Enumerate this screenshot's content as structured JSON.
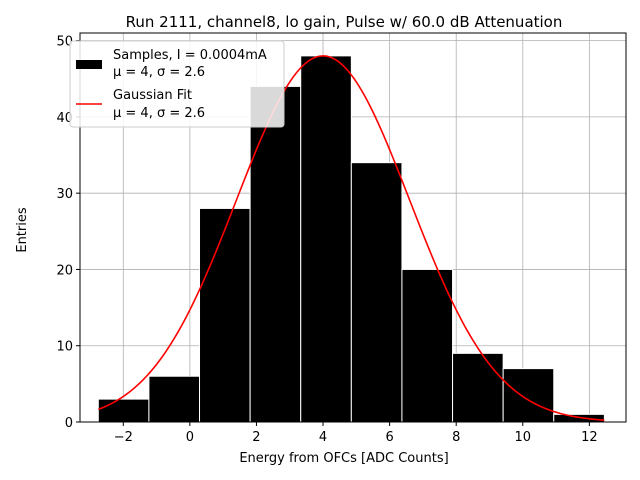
{
  "chart_data": {
    "type": "bar",
    "title": "Run 2111, channel8, lo gain, Pulse w/ 60.0 dB Attenuation",
    "xlabel": "Energy from OFCs [ADC Counts]",
    "ylabel": "Entries",
    "xlim": [
      -3.3,
      13.1
    ],
    "ylim": [
      0,
      51
    ],
    "xticks": [
      -2,
      0,
      2,
      4,
      6,
      8,
      10,
      12
    ],
    "yticks": [
      0,
      10,
      20,
      30,
      40,
      50
    ],
    "grid": true,
    "legend_position": "upper-left",
    "histogram": {
      "name": "Samples, I = 0.0004mA",
      "stats_label": "μ = 4, σ = 2.6",
      "color": "#000000",
      "edge_color": "#ffffff",
      "bin_edges": [
        -2.75,
        -1.23,
        0.29,
        1.81,
        3.33,
        4.85,
        6.37,
        7.89,
        9.41,
        10.93,
        12.45
      ],
      "counts": [
        3,
        6,
        28,
        44,
        48,
        34,
        20,
        9,
        7,
        1
      ]
    },
    "fit": {
      "name": "Gaussian Fit",
      "stats_label": "μ = 4, σ = 2.6",
      "color": "#ff0000",
      "type": "gaussian",
      "amplitude": 48,
      "mu": 4,
      "sigma": 2.6,
      "x_range": [
        -2.75,
        12.45
      ]
    }
  }
}
